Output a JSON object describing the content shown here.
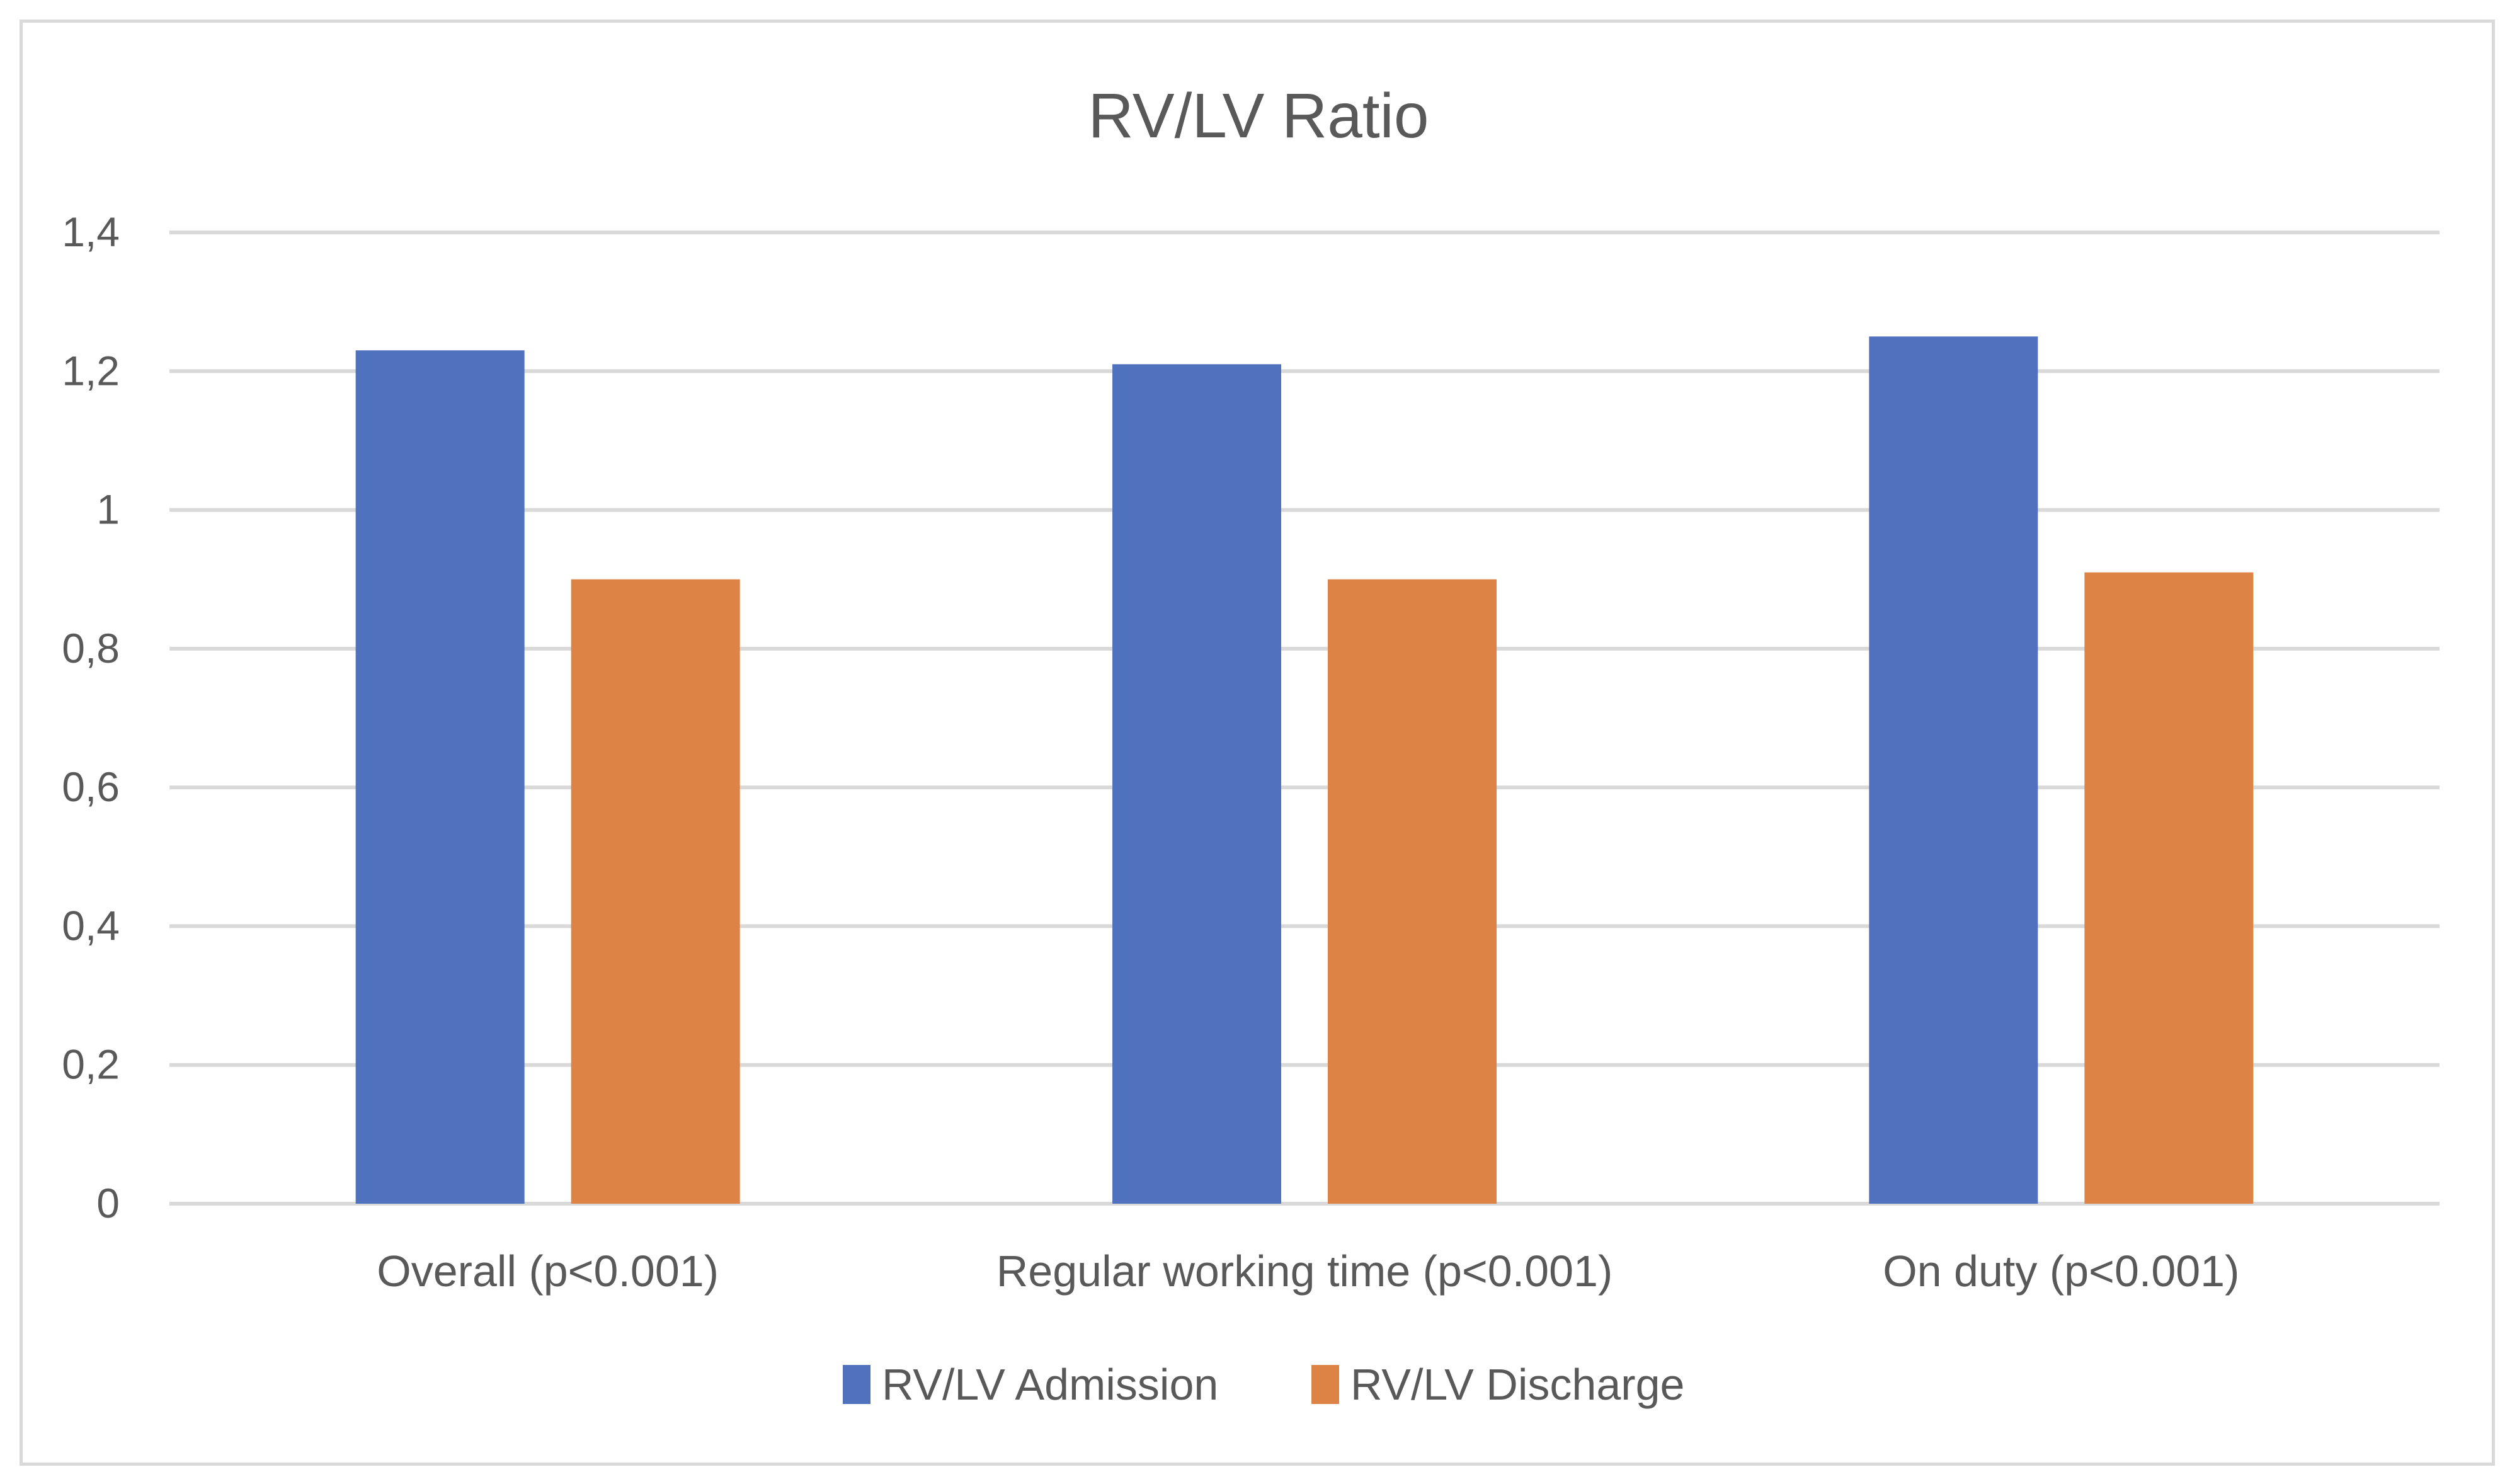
{
  "chart_data": {
    "type": "bar",
    "title": "RV/LV Ratio",
    "xlabel": "",
    "ylabel": "",
    "categories": [
      "Overall (p<0.001)",
      "Regular working time (p<0.001)",
      "On duty (p<0.001)"
    ],
    "series": [
      {
        "name": "RV/LV Admission",
        "color": "#4f71be",
        "values": [
          1.23,
          1.21,
          1.25
        ]
      },
      {
        "name": "RV/LV Discharge",
        "color": "#de8346",
        "values": [
          0.9,
          0.9,
          0.91
        ]
      }
    ],
    "ylim": [
      0,
      1.4
    ],
    "yticks": [
      0,
      0.2,
      0.4,
      0.6,
      0.8,
      1,
      1.2,
      1.4
    ],
    "ytick_labels": [
      "0",
      "0,2",
      "0,4",
      "0,6",
      "0,8",
      "1",
      "1,2",
      "1,4"
    ],
    "grid": true,
    "legend_position": "bottom"
  },
  "colors": {
    "gridline": "#d9d9d9",
    "text": "#595959",
    "border": "#d9d9d9"
  }
}
